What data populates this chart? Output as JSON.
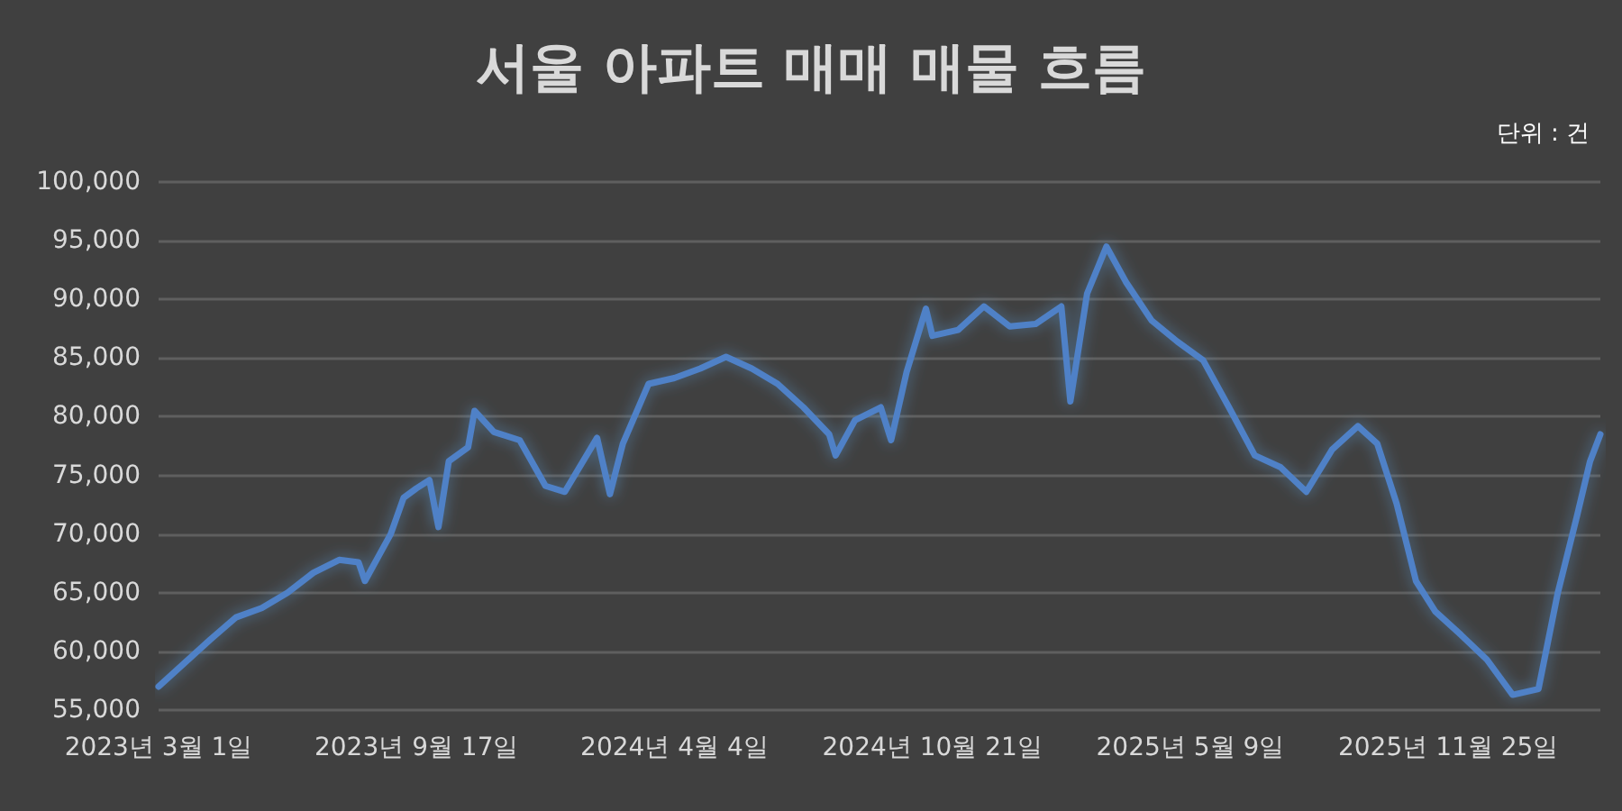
{
  "chart_data": {
    "type": "line",
    "title": "서울 아파트 매매 매물 흐름",
    "annotations": [
      "단위 : 건"
    ],
    "x": [
      "2023-03-01",
      "2023-03-21",
      "2023-04-10",
      "2023-04-30",
      "2023-05-20",
      "2023-06-09",
      "2023-06-29",
      "2023-07-19",
      "2023-08-03",
      "2023-08-08",
      "2023-08-28",
      "2023-09-07",
      "2023-09-17",
      "2023-09-27",
      "2023-10-04",
      "2023-10-12",
      "2023-10-27",
      "2023-11-01",
      "2023-11-16",
      "2023-12-06",
      "2023-12-26",
      "2024-01-10",
      "2024-02-04",
      "2024-02-14",
      "2024-02-24",
      "2024-03-15",
      "2024-04-04",
      "2024-04-24",
      "2024-05-14",
      "2024-06-03",
      "2024-06-23",
      "2024-07-13",
      "2024-08-02",
      "2024-08-07",
      "2024-08-22",
      "2024-09-11",
      "2024-09-19",
      "2024-10-01",
      "2024-10-16",
      "2024-10-21",
      "2024-11-10",
      "2024-11-30",
      "2024-12-20",
      "2025-01-09",
      "2025-01-29",
      "2025-02-05",
      "2025-02-18",
      "2025-03-05",
      "2025-03-20",
      "2025-04-09",
      "2025-04-29",
      "2025-05-19",
      "2025-06-08",
      "2025-06-28",
      "2025-07-18",
      "2025-08-07",
      "2025-08-27",
      "2025-09-16",
      "2025-10-01",
      "2025-10-16",
      "2025-10-31",
      "2025-11-15",
      "2025-12-05",
      "2025-12-25",
      "2026-01-14",
      "2026-02-03",
      "2026-02-18",
      "2026-03-05",
      "2026-03-15",
      "2026-03-23"
    ],
    "series": [
      {
        "color": "#4f81c7",
        "values": [
          57000,
          59000,
          61000,
          62900,
          63700,
          65000,
          66700,
          67800,
          67600,
          66000,
          70000,
          73100,
          73900,
          74600,
          70600,
          76200,
          77400,
          80500,
          78700,
          78000,
          74100,
          73600,
          78200,
          73400,
          77700,
          82800,
          83300,
          84100,
          85100,
          84100,
          82800,
          80800,
          78500,
          76700,
          79700,
          80800,
          78000,
          83800,
          89200,
          86900,
          87400,
          89400,
          87700,
          87900,
          89400,
          81300,
          90500,
          94500,
          91500,
          88200,
          86400,
          84800,
          80800,
          76700,
          75700,
          73600,
          77200,
          79200,
          77700,
          72600,
          66000,
          63400,
          61400,
          59300,
          56300,
          56800,
          65000,
          71600,
          76200,
          78500
        ]
      }
    ],
    "xlim": [
      "2023-03-01",
      "2026-03-23"
    ],
    "xticks": [
      {
        "value": "2023-03-01",
        "label": "2023년 3월 1일"
      },
      {
        "value": "2023-09-17",
        "label": "2023년 9월 17일"
      },
      {
        "value": "2024-04-04",
        "label": "2024년 4월 4일"
      },
      {
        "value": "2024-10-21",
        "label": "2024년 10월 21일"
      },
      {
        "value": "2025-05-09",
        "label": "2025년 5월 9일"
      },
      {
        "value": "2025-11-25",
        "label": "2025년 11월 25일"
      }
    ],
    "ylim": [
      55000,
      100000
    ],
    "yticks": [
      {
        "value": 55000,
        "label": "55,000"
      },
      {
        "value": 60000,
        "label": "60,000"
      },
      {
        "value": 65000,
        "label": "65,000"
      },
      {
        "value": 70000,
        "label": "70,000"
      },
      {
        "value": 75000,
        "label": "75,000"
      },
      {
        "value": 80000,
        "label": "80,000"
      },
      {
        "value": 85000,
        "label": "85,000"
      },
      {
        "value": 90000,
        "label": "90,000"
      },
      {
        "value": 95000,
        "label": "95,000"
      },
      {
        "value": 100000,
        "label": "100,000"
      }
    ],
    "grid": "y",
    "marker": "none",
    "line_style": "solid"
  }
}
